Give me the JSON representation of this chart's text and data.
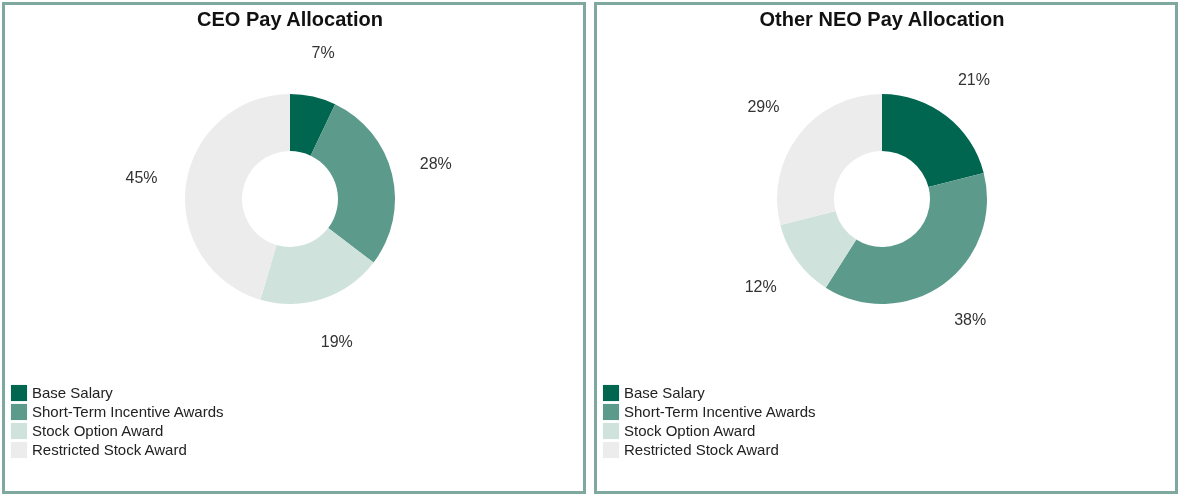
{
  "chart_data": [
    {
      "type": "donut",
      "title": "CEO Pay Allocation",
      "categories": [
        "Base Salary",
        "Short-Term Incentive Awards",
        "Stock Option Award",
        "Restricted Stock Award"
      ],
      "values": [
        7,
        28,
        19,
        45
      ],
      "value_labels": [
        "7%",
        "28%",
        "19%",
        "45%"
      ],
      "colors": [
        "#00664f",
        "#5c9a8b",
        "#cfe3dc",
        "#ececec"
      ],
      "legend": "bottom"
    },
    {
      "type": "donut",
      "title": "Other NEO Pay Allocation",
      "categories": [
        "Base Salary",
        "Short-Term Incentive Awards",
        "Stock Option Award",
        "Restricted Stock Award"
      ],
      "values": [
        21,
        38,
        12,
        29
      ],
      "value_labels": [
        "21%",
        "38%",
        "12%",
        "29%"
      ],
      "colors": [
        "#00664f",
        "#5c9a8b",
        "#cfe3dc",
        "#ececec"
      ],
      "legend": "bottom"
    }
  ]
}
